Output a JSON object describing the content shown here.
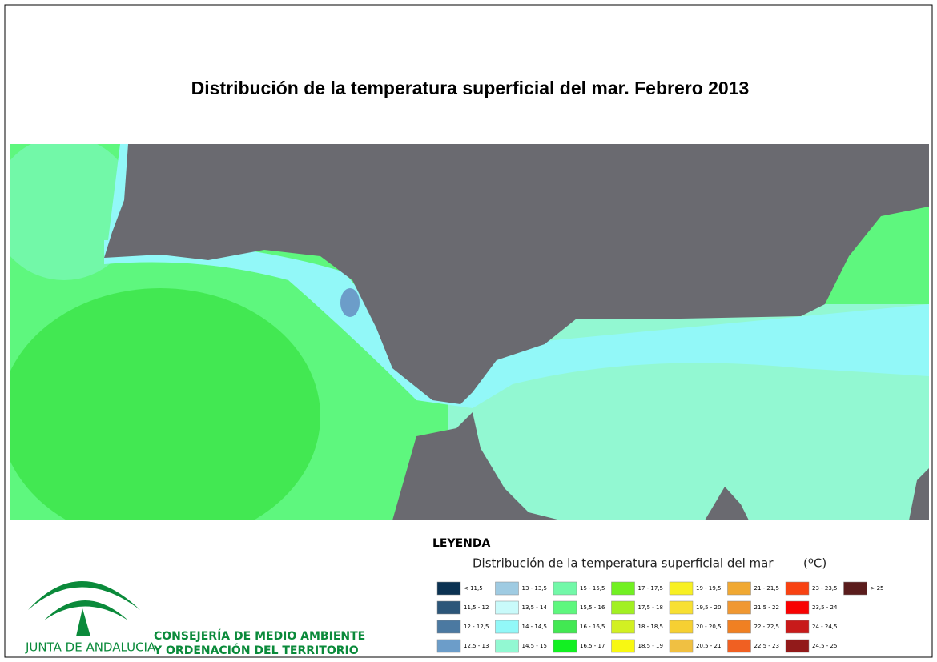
{
  "title": "Distribución de la temperatura superficial del mar. Febrero 2013",
  "legend": {
    "heading": "LEYENDA",
    "subtitle": "Distribución de la temperatura superficial del mar",
    "unit": "(ºC)",
    "items": [
      {
        "label": "< 11,5",
        "color": "#0b3252"
      },
      {
        "label": "11,5 - 12",
        "color": "#2c5679"
      },
      {
        "label": "12 - 12,5",
        "color": "#4b79a1"
      },
      {
        "label": "12,5 - 13",
        "color": "#6c9dc9"
      },
      {
        "label": "13 - 13,5",
        "color": "#9fcbe2"
      },
      {
        "label": "13,5 - 14",
        "color": "#c9fafa"
      },
      {
        "label": "14 - 14,5",
        "color": "#92f8f8"
      },
      {
        "label": "14,5 - 15",
        "color": "#92f8d2"
      },
      {
        "label": "15 - 15,5",
        "color": "#72f8a8"
      },
      {
        "label": "15,5 - 16",
        "color": "#5ef77e"
      },
      {
        "label": "16 - 16,5",
        "color": "#42e852"
      },
      {
        "label": "16,5 - 17",
        "color": "#12f022"
      },
      {
        "label": "17 - 17,5",
        "color": "#72f022"
      },
      {
        "label": "17,5 - 18",
        "color": "#a2f022"
      },
      {
        "label": "18 - 18,5",
        "color": "#d2f022"
      },
      {
        "label": "18,5 - 19",
        "color": "#f8f812"
      },
      {
        "label": "19 - 19,5",
        "color": "#f8f022"
      },
      {
        "label": "19,5 - 20",
        "color": "#f8e032"
      },
      {
        "label": "20 - 20,5",
        "color": "#f6d032"
      },
      {
        "label": "20,5 - 21",
        "color": "#f0c042"
      },
      {
        "label": "21 - 21,5",
        "color": "#f0a832"
      },
      {
        "label": "21,5 - 22",
        "color": "#f09832"
      },
      {
        "label": "22 - 22,5",
        "color": "#f08022"
      },
      {
        "label": "22,5 - 23",
        "color": "#f06022"
      },
      {
        "label": "23 - 23,5",
        "color": "#f84212"
      },
      {
        "label": "23,5 - 24",
        "color": "#f80202"
      },
      {
        "label": "24 - 24,5",
        "color": "#c81a1a"
      },
      {
        "label": "24,5 - 25",
        "color": "#921a1a"
      },
      {
        "label": "> 25",
        "color": "#5a1c1c"
      }
    ]
  },
  "logo": {
    "name": "JUNTA DE ANDALUCIA",
    "line1": "CONSEJERÍA DE MEDIO AMBIENTE",
    "line2": "Y ORDENACIÓN DEL TERRITORIO"
  }
}
